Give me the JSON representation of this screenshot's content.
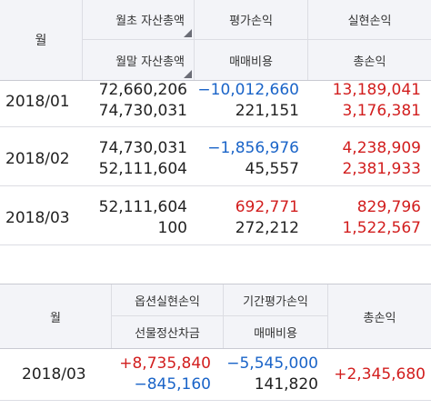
{
  "table1": {
    "headers": {
      "month": "월",
      "open_assets": "월초 자산총액",
      "close_assets": "월말 자산총액",
      "valuation_pl": "평가손익",
      "trading_cost": "매매비용",
      "realized_pl": "실현손익",
      "total_pl": "총손익"
    },
    "rows": [
      {
        "month": "2018/01",
        "open_assets": "72,660,206",
        "close_assets": "74,730,031",
        "valuation_pl": "−10,012,660",
        "trading_cost": "221,151",
        "realized_pl": "13,189,041",
        "total_pl": "3,176,381"
      },
      {
        "month": "2018/02",
        "open_assets": "74,730,031",
        "close_assets": "52,111,604",
        "valuation_pl": "−1,856,976",
        "trading_cost": "45,557",
        "realized_pl": "4,238,909",
        "total_pl": "2,381,933"
      },
      {
        "month": "2018/03",
        "open_assets": "52,111,604",
        "close_assets": "100",
        "valuation_pl": "692,771",
        "trading_cost": "272,212",
        "realized_pl": "829,796",
        "total_pl": "1,522,567"
      }
    ]
  },
  "table2": {
    "headers": {
      "month": "월",
      "option_realized": "옵션실현손익",
      "futures_settlement": "선물정산차금",
      "period_valuation": "기간평가손익",
      "trading_cost": "매매비용",
      "total_pl": "총손익"
    },
    "rows": [
      {
        "month": "2018/03",
        "option_realized": "+8,735,840",
        "futures_settlement": "−845,160",
        "period_valuation": "−5,545,000",
        "trading_cost": "141,820",
        "total_pl": "+2,345,680"
      }
    ]
  },
  "colors": {
    "negative": "#1a64c8",
    "positive": "#d21e1e",
    "header_bg": "#f3f4f8"
  }
}
